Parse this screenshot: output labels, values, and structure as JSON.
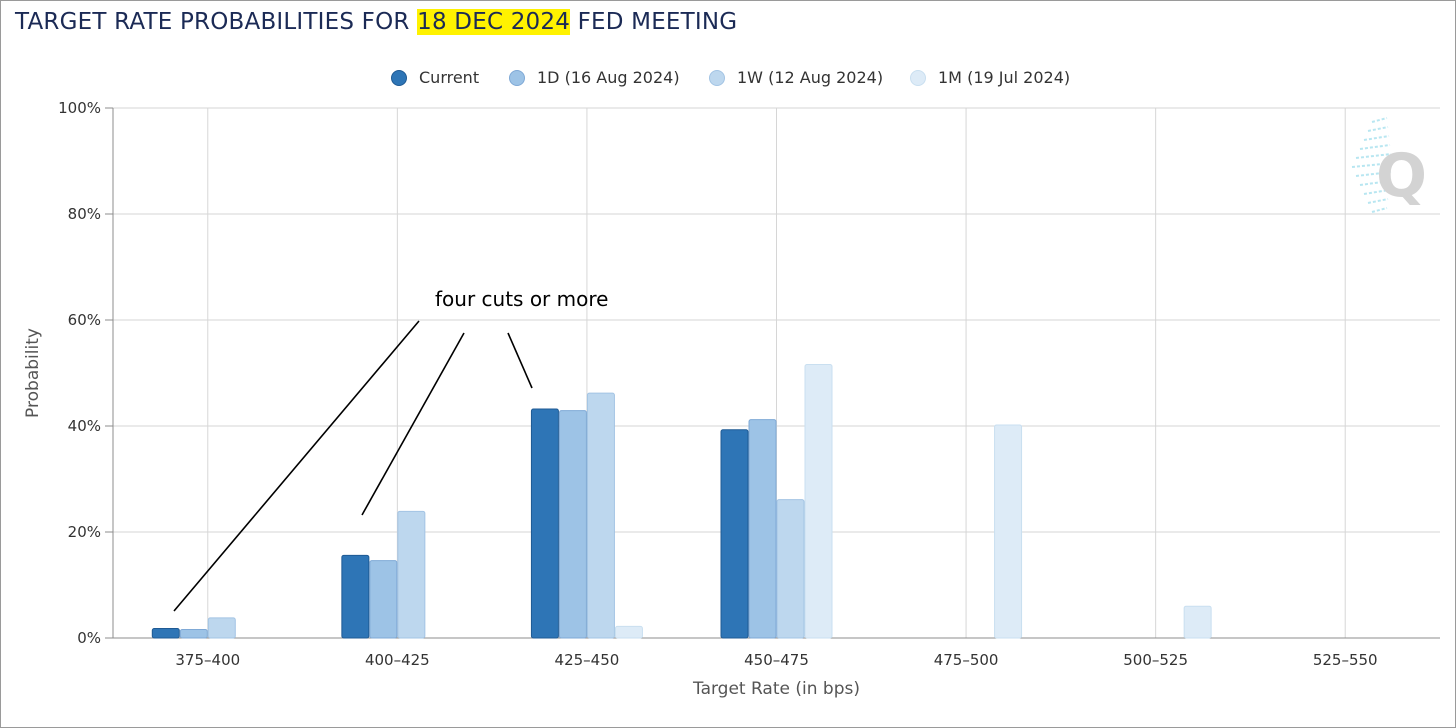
{
  "title": {
    "prefix": "TARGET RATE PROBABILITIES FOR ",
    "highlight": "18 DEC 2024",
    "suffix": " FED MEETING"
  },
  "annotation": "four cuts or more",
  "colors": {
    "title": "#1b2a55",
    "highlight": "#fff200",
    "series": [
      "#2e75b6",
      "#9dc3e6",
      "#bdd7ee",
      "#ddebf7"
    ],
    "series_border": [
      "#1f5a94",
      "#7fa9d6",
      "#a3c4e4",
      "#c9dff0"
    ]
  },
  "chart_data": {
    "type": "bar",
    "title": "TARGET RATE PROBABILITIES FOR 18 DEC 2024 FED MEETING",
    "xlabel": "Target Rate (in bps)",
    "ylabel": "Probability",
    "categories": [
      "375–400",
      "400–425",
      "425–450",
      "450–475",
      "475–500",
      "500–525",
      "525–550"
    ],
    "yticks": [
      "0%",
      "20%",
      "40%",
      "60%",
      "80%",
      "100%"
    ],
    "ylim": [
      0,
      100
    ],
    "grid": true,
    "legend_position": "top-center",
    "series": [
      {
        "name": "Current",
        "values": [
          1.8,
          15.6,
          43.2,
          39.3,
          0,
          0,
          0
        ]
      },
      {
        "name": "1D (16 Aug 2024)",
        "values": [
          1.6,
          14.6,
          42.9,
          41.2,
          0,
          0,
          0
        ]
      },
      {
        "name": "1W (12 Aug 2024)",
        "values": [
          3.8,
          23.9,
          46.2,
          26.1,
          0,
          0,
          0
        ]
      },
      {
        "name": "1M (19 Jul 2024)",
        "values": [
          0,
          0,
          2.2,
          51.6,
          40.2,
          6.0,
          0
        ]
      }
    ]
  }
}
